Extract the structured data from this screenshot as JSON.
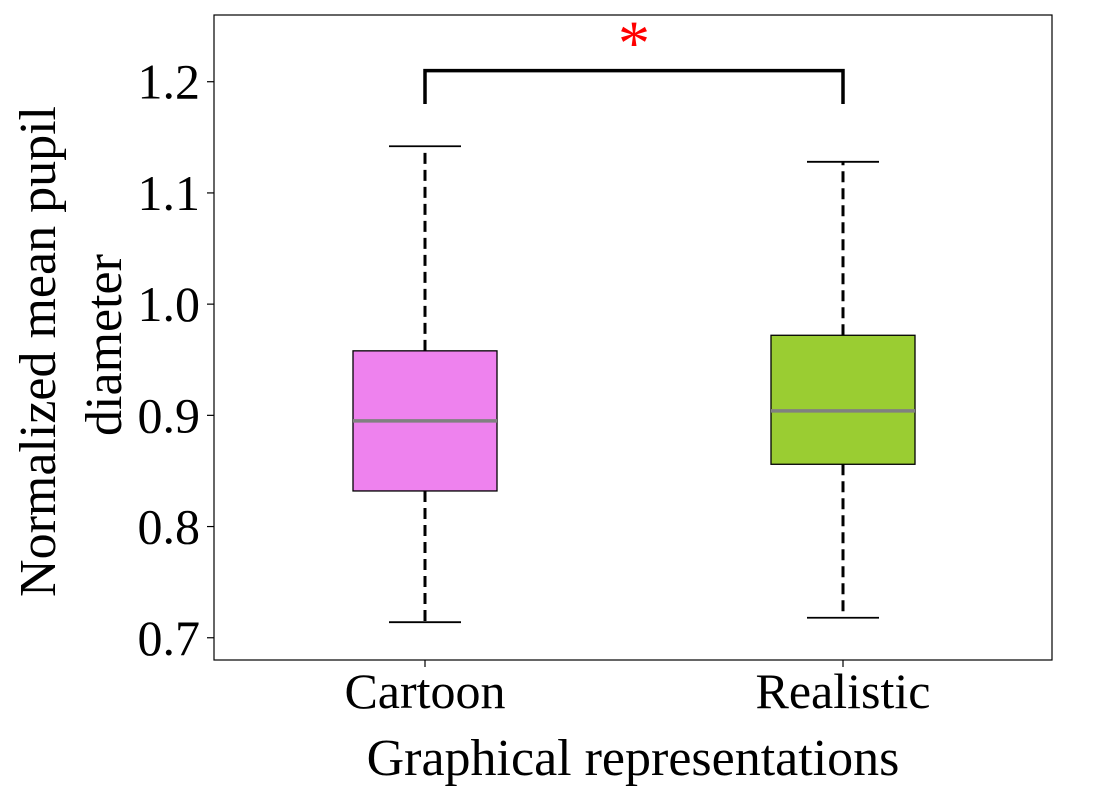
{
  "chart_data": {
    "type": "box",
    "xlabel": "Graphical representations",
    "ylabel_lines": [
      "Normalized mean pupil",
      "diameter"
    ],
    "ylim": [
      0.68,
      1.26
    ],
    "yticks": [
      0.7,
      0.8,
      0.9,
      1.0,
      1.1,
      1.2
    ],
    "ytick_labels": [
      "0.7",
      "0.8",
      "0.9",
      "1.0",
      "1.1",
      "1.2"
    ],
    "categories": [
      "Cartoon",
      "Realistic"
    ],
    "boxes": [
      {
        "category": "Cartoon",
        "whisker_low": 0.714,
        "q1": 0.832,
        "median": 0.895,
        "q3": 0.958,
        "whisker_high": 1.142,
        "color": "#ee82ee"
      },
      {
        "category": "Realistic",
        "whisker_low": 0.718,
        "q1": 0.856,
        "median": 0.904,
        "q3": 0.972,
        "whisker_high": 1.128,
        "color": "#9acd32"
      }
    ],
    "median_color": "#808080",
    "significance": {
      "label": "*",
      "between": [
        "Cartoon",
        "Realistic"
      ],
      "bracket_y": 1.21,
      "tip_y": 1.18,
      "color": "#ff0000"
    },
    "grid": false,
    "legend": "none"
  }
}
